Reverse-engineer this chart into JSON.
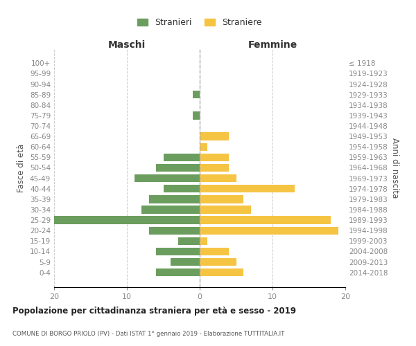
{
  "age_groups": [
    "0-4",
    "5-9",
    "10-14",
    "15-19",
    "20-24",
    "25-29",
    "30-34",
    "35-39",
    "40-44",
    "45-49",
    "50-54",
    "55-59",
    "60-64",
    "65-69",
    "70-74",
    "75-79",
    "80-84",
    "85-89",
    "90-94",
    "95-99",
    "100+"
  ],
  "birth_years": [
    "2014-2018",
    "2009-2013",
    "2004-2008",
    "1999-2003",
    "1994-1998",
    "1989-1993",
    "1984-1988",
    "1979-1983",
    "1974-1978",
    "1969-1973",
    "1964-1968",
    "1959-1963",
    "1954-1958",
    "1949-1953",
    "1944-1948",
    "1939-1943",
    "1934-1938",
    "1929-1933",
    "1924-1928",
    "1919-1923",
    "≤ 1918"
  ],
  "maschi": [
    6,
    4,
    6,
    3,
    7,
    20,
    8,
    7,
    5,
    9,
    6,
    5,
    0,
    0,
    0,
    1,
    0,
    1,
    0,
    0,
    0
  ],
  "femmine": [
    6,
    5,
    4,
    1,
    19,
    18,
    7,
    6,
    13,
    5,
    4,
    4,
    1,
    4,
    0,
    0,
    0,
    0,
    0,
    0,
    0
  ],
  "color_maschi": "#6b9e5e",
  "color_femmine": "#f5c443",
  "title": "Popolazione per cittadinanza straniera per età e sesso - 2019",
  "subtitle": "COMUNE DI BORGO PRIOLO (PV) - Dati ISTAT 1° gennaio 2019 - Elaborazione TUTTITALIA.IT",
  "xlabel_maschi": "Maschi",
  "xlabel_femmine": "Femmine",
  "ylabel_left": "Fasce di età",
  "ylabel_right": "Anni di nascita",
  "legend_maschi": "Stranieri",
  "legend_femmine": "Straniere",
  "xlim": 20,
  "background_color": "#ffffff",
  "grid_color": "#cccccc",
  "axis_label_color": "#555555",
  "tick_color": "#888888"
}
